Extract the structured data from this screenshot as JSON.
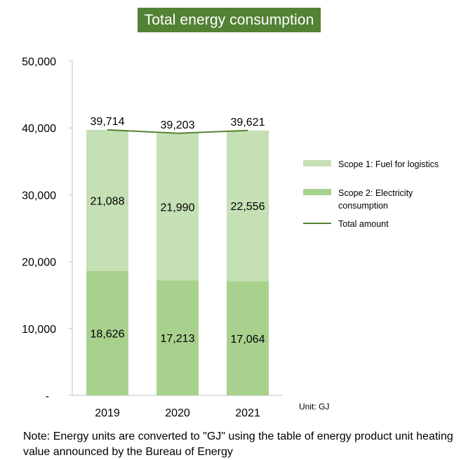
{
  "colors": {
    "title_bg": "#548235",
    "scope1": "#c5e0b4",
    "scope2": "#a9d18e",
    "total_line": "#548235",
    "axis": "#bfbfbf"
  },
  "unit_label": "Unit: GJ",
  "note": "Note: Energy units are converted to \"GJ\" using the table of energy product unit heating value announced by the Bureau of Energy",
  "chart_data": {
    "type": "bar",
    "title": "Total energy consumption",
    "categories": [
      "2019",
      "2020",
      "2021"
    ],
    "stacked": true,
    "ylim": [
      0,
      50000
    ],
    "y_ticks": [
      0,
      10000,
      20000,
      30000,
      40000,
      50000
    ],
    "y_tick_labels": [
      "-",
      "10,000",
      "20,000",
      "30,000",
      "40,000",
      "50,000"
    ],
    "series": [
      {
        "name": "Scope 2: Electricity consumption",
        "kind": "bar",
        "values": [
          18626,
          17213,
          17064
        ],
        "labels": [
          "18,626",
          "17,213",
          "17,064"
        ]
      },
      {
        "name": "Scope 1: Fuel for logistics",
        "kind": "bar",
        "values": [
          21088,
          21990,
          22556
        ],
        "labels": [
          "21,088",
          "21,990",
          "22,556"
        ]
      },
      {
        "name": "Total amount",
        "kind": "line",
        "values": [
          39714,
          39203,
          39621
        ],
        "labels": [
          "39,714",
          "39,203",
          "39,621"
        ]
      }
    ],
    "legend": [
      {
        "label_lines": [
          "Scope 1: Fuel for logistics"
        ],
        "kind": "bar",
        "series": "Scope 1: Fuel for logistics"
      },
      {
        "label_lines": [
          "Scope 2: Electricity",
          "consumption"
        ],
        "kind": "bar",
        "series": "Scope 2: Electricity consumption"
      },
      {
        "label_lines": [
          "Total amount"
        ],
        "kind": "line",
        "series": "Total amount"
      }
    ],
    "legend_position": "right",
    "grid": false
  }
}
